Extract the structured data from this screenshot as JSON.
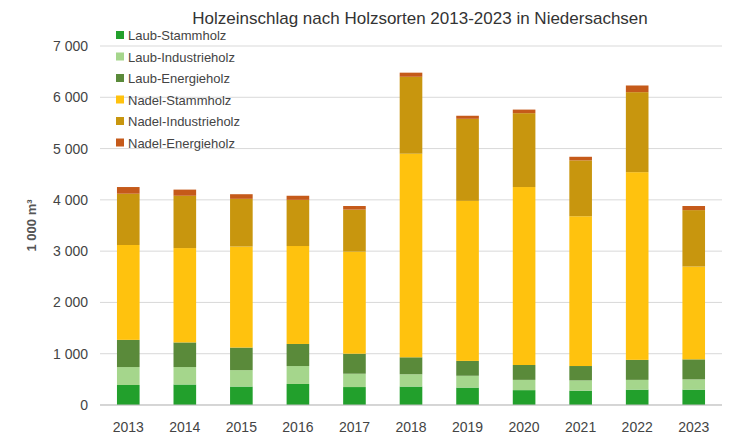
{
  "chart_data": {
    "type": "bar",
    "title": "Holzeinschlag nach Holzsorten 2013-2023 in Niedersachsen",
    "y_label": "1 000 m³",
    "categories": [
      "2013",
      "2014",
      "2015",
      "2016",
      "2017",
      "2018",
      "2019",
      "2020",
      "2021",
      "2022",
      "2023"
    ],
    "series": [
      {
        "name": "Laub-Stammholz",
        "color": "#22a02c",
        "values": [
          390,
          400,
          360,
          410,
          350,
          360,
          340,
          290,
          280,
          300,
          300
        ]
      },
      {
        "name": "Laub-Industrieholz",
        "color": "#a5d68c",
        "values": [
          350,
          340,
          320,
          350,
          260,
          240,
          230,
          200,
          200,
          190,
          200
        ]
      },
      {
        "name": "Laub-Energieholz",
        "color": "#5a8a3a",
        "values": [
          530,
          480,
          440,
          430,
          390,
          330,
          290,
          290,
          280,
          390,
          390
        ]
      },
      {
        "name": "Nadel-Stammholz",
        "color": "#ffc20e",
        "values": [
          1850,
          1840,
          1970,
          1910,
          1990,
          3970,
          3120,
          3470,
          2920,
          3660,
          1810
        ]
      },
      {
        "name": "Nadel-Industrieholz",
        "color": "#c8960e",
        "values": [
          1000,
          1020,
          930,
          900,
          820,
          1500,
          1600,
          1440,
          1090,
          1560,
          1100
        ]
      },
      {
        "name": "Nadel-Energieholz",
        "color": "#c55a1a",
        "values": [
          130,
          120,
          90,
          80,
          70,
          80,
          60,
          70,
          70,
          130,
          80
        ]
      }
    ],
    "ylim": [
      0,
      7000
    ],
    "yticks": [
      0,
      {
        "value": 1000,
        "label": "1 000"
      },
      {
        "value": 2000,
        "label": "2 000"
      },
      {
        "value": 3000,
        "label": "3 000"
      },
      {
        "value": 4000,
        "label": "4 000"
      },
      {
        "value": 5000,
        "label": "5 000"
      },
      {
        "value": 6000,
        "label": "6 000"
      },
      {
        "value": 7000,
        "label": "7 000"
      }
    ],
    "grid": true,
    "stacked": true,
    "legend": "top-left"
  }
}
